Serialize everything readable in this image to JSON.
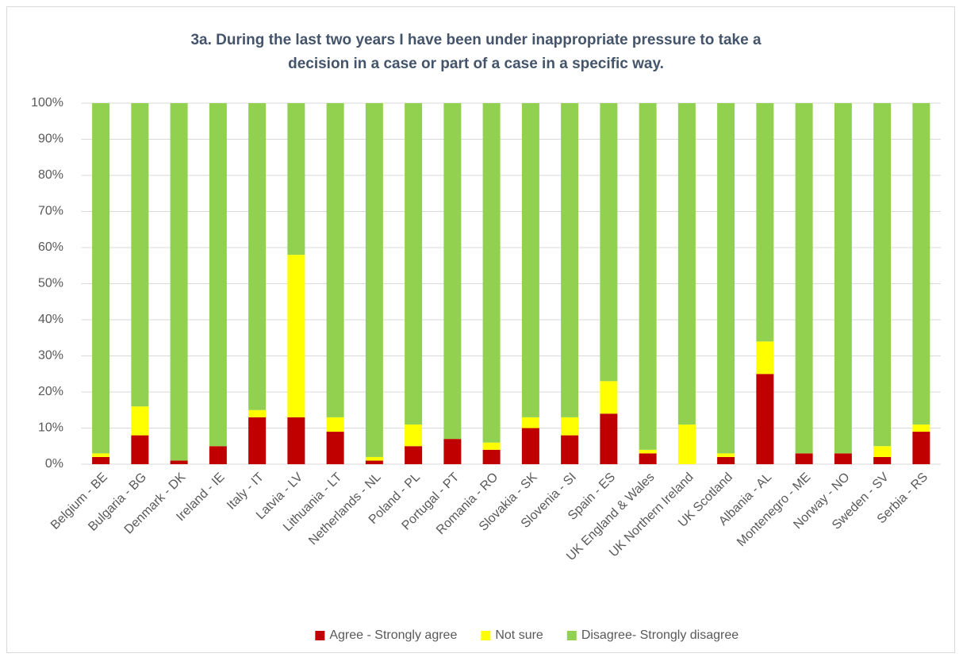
{
  "chart_data": {
    "type": "stacked_bar",
    "title": "3a. During the last two years I have been under inappropriate pressure to take a decision in a case or part of a case in a specific way.",
    "categories": [
      "Belgium - BE",
      "Bulgaria - BG",
      "Denmark - DK",
      "Ireland - IE",
      "Italy - IT",
      "Latvia - LV",
      "Lithuania - LT",
      "Netherlands - NL",
      "Poland - PL",
      "Portugal - PT",
      "Romania - RO",
      "Slovakia - SK",
      "Slovenia - SI",
      "Spain - ES",
      "UK England & Wales",
      "UK Northern Ireland",
      "UK Scotland",
      "Albania - AL",
      "Montenegro - ME",
      "Norway - NO",
      "Sweden - SV",
      "Serbia - RS"
    ],
    "series": [
      {
        "name": "Agree - Strongly agree",
        "color": "#c00000",
        "values": [
          2,
          8,
          1,
          5,
          13,
          13,
          9,
          1,
          5,
          7,
          4,
          10,
          8,
          14,
          3,
          0,
          2,
          25,
          3,
          3,
          2,
          9
        ]
      },
      {
        "name": "Not sure",
        "color": "#ffff00",
        "values": [
          1,
          8,
          0,
          0,
          2,
          45,
          4,
          1,
          6,
          0,
          2,
          3,
          5,
          9,
          1,
          11,
          1,
          9,
          0,
          0,
          3,
          2
        ]
      },
      {
        "name": "Disagree- Strongly disagree",
        "color": "#92d050",
        "values": [
          97,
          84,
          99,
          95,
          85,
          42,
          87,
          98,
          89,
          93,
          94,
          87,
          87,
          77,
          96,
          89,
          97,
          66,
          97,
          97,
          95,
          89
        ]
      }
    ],
    "ylim": [
      0,
      100
    ],
    "yticks": [
      {
        "value": 0,
        "label": "0%"
      },
      {
        "value": 10,
        "label": "10%"
      },
      {
        "value": 20,
        "label": "20%"
      },
      {
        "value": 30,
        "label": "30%"
      },
      {
        "value": 40,
        "label": "40%"
      },
      {
        "value": 50,
        "label": "50%"
      },
      {
        "value": 60,
        "label": "60%"
      },
      {
        "value": 70,
        "label": "70%"
      },
      {
        "value": 80,
        "label": "80%"
      },
      {
        "value": 90,
        "label": "90%"
      },
      {
        "value": 100,
        "label": "100%"
      }
    ],
    "grid": true,
    "legend": "bottom"
  }
}
